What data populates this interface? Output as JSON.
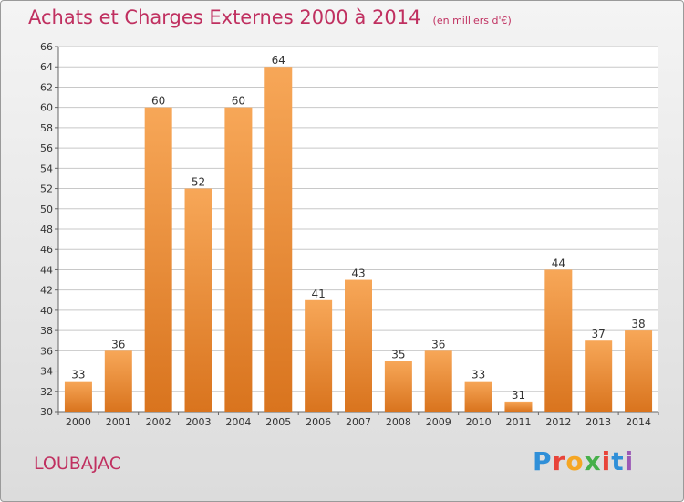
{
  "title": "Achats et Charges Externes 2000 à 2014",
  "subtitle": "(en milliers d'€)",
  "commune": "LOUBAJAC",
  "brand": {
    "text": "Proxiti",
    "letter_colors": [
      "#2f8fd8",
      "#e8443a",
      "#f5a623",
      "#46b04a",
      "#e8443a",
      "#2f8fd8",
      "#9b59b6"
    ]
  },
  "colors": {
    "title": "#c03060",
    "bar_light": "#f7a758",
    "bar_dark": "#d9741e",
    "grid": "#c8c8c8",
    "axis_text": "#333333"
  },
  "chart_data": {
    "type": "bar",
    "categories": [
      "2000",
      "2001",
      "2002",
      "2003",
      "2004",
      "2005",
      "2006",
      "2007",
      "2008",
      "2009",
      "2010",
      "2011",
      "2012",
      "2013",
      "2014"
    ],
    "values": [
      33,
      36,
      60,
      52,
      60,
      64,
      41,
      43,
      35,
      36,
      33,
      31,
      44,
      37,
      38
    ],
    "ylim": [
      30,
      66
    ],
    "yticks": [
      30,
      32,
      34,
      36,
      38,
      40,
      42,
      44,
      46,
      48,
      50,
      52,
      54,
      56,
      58,
      60,
      62,
      64,
      66
    ],
    "grid": true,
    "data_labels": true,
    "title": "Achats et Charges Externes 2000 à 2014",
    "xlabel": "",
    "ylabel": ""
  }
}
